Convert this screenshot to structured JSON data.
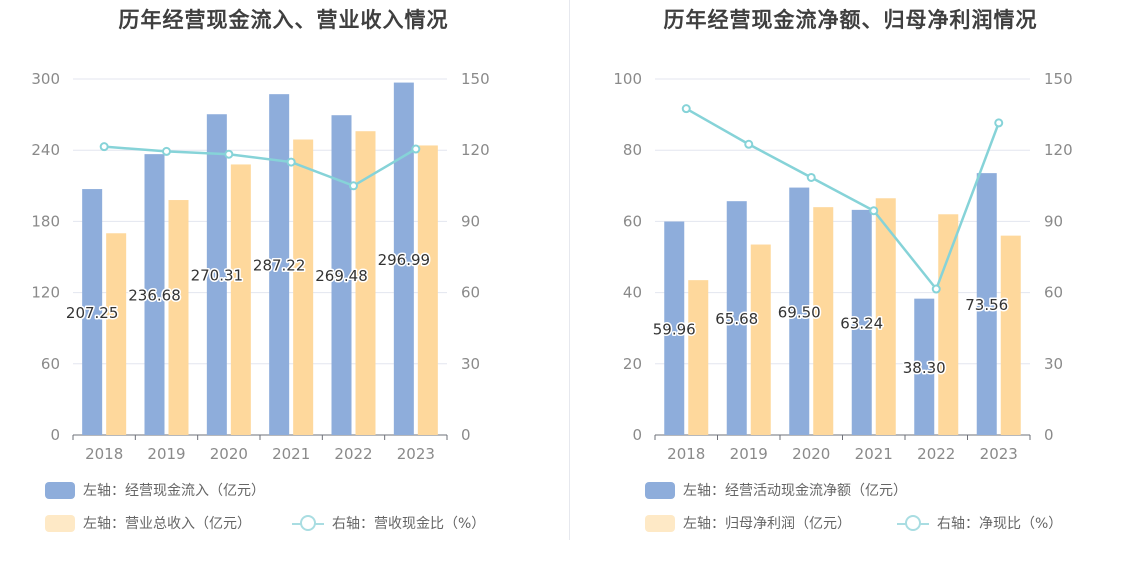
{
  "charts": {
    "left": {
      "title": "历年经营现金流入、营业收入情况",
      "legend": {
        "bar1": "左轴：经营现金流入（亿元）",
        "bar2": "左轴：营业总收入（亿元）",
        "line": "右轴：营收现金比（%）"
      }
    },
    "right": {
      "title": "历年经营现金流净额、归母净利润情况",
      "legend": {
        "bar1": "左轴：经营活动现金流净额（亿元）",
        "bar2": "左轴：归母净利润（亿元）",
        "line": "右轴：净现比（%）"
      }
    }
  },
  "colors": {
    "bar1": "#8eaddb",
    "bar2": "#fed89c",
    "line": "#86d3d8"
  },
  "chart_data": [
    {
      "type": "bar",
      "title": "历年经营现金流入、营业收入情况",
      "categories": [
        "2018",
        "2019",
        "2020",
        "2021",
        "2022",
        "2023"
      ],
      "left_axis": {
        "ylim": [
          0,
          300
        ],
        "ticks": [
          "0",
          "60",
          "120",
          "180",
          "240",
          "300"
        ]
      },
      "right_axis": {
        "ylim": [
          0,
          150
        ],
        "ticks": [
          "0",
          "30",
          "60",
          "90",
          "120",
          "150"
        ]
      },
      "series": [
        {
          "name": "左轴：经营现金流入（亿元）",
          "axis": "left",
          "kind": "bar",
          "values": [
            207.25,
            236.68,
            270.31,
            287.22,
            269.48,
            296.99
          ],
          "labels": [
            "207.25",
            "236.68",
            "270.31",
            "287.22",
            "269.48",
            "296.99"
          ]
        },
        {
          "name": "左轴：营业总收入（亿元）",
          "axis": "left",
          "kind": "bar",
          "values": [
            170,
            198,
            228,
            249,
            256,
            244
          ]
        },
        {
          "name": "右轴：营收现金比（%）",
          "axis": "right",
          "kind": "line",
          "values": [
            121.5,
            119.5,
            118.3,
            115,
            105,
            120.5
          ]
        }
      ]
    },
    {
      "type": "bar",
      "title": "历年经营现金流净额、归母净利润情况",
      "categories": [
        "2018",
        "2019",
        "2020",
        "2021",
        "2022",
        "2023"
      ],
      "left_axis": {
        "ylim": [
          0,
          100
        ],
        "ticks": [
          "0",
          "20",
          "40",
          "60",
          "80",
          "100"
        ]
      },
      "right_axis": {
        "ylim": [
          0,
          150
        ],
        "ticks": [
          "0",
          "30",
          "60",
          "90",
          "120",
          "150"
        ]
      },
      "series": [
        {
          "name": "左轴：经营活动现金流净额（亿元）",
          "axis": "left",
          "kind": "bar",
          "values": [
            59.96,
            65.68,
            69.5,
            63.24,
            38.3,
            73.56
          ],
          "labels": [
            "59.96",
            "65.68",
            "69.50",
            "63.24",
            "38.30",
            "73.56"
          ]
        },
        {
          "name": "左轴：归母净利润（亿元）",
          "axis": "left",
          "kind": "bar",
          "values": [
            43.5,
            53.5,
            64,
            66.5,
            62,
            56
          ]
        },
        {
          "name": "右轴：净现比（%）",
          "axis": "right",
          "kind": "line",
          "values": [
            137.5,
            122.5,
            108.5,
            94.5,
            61.5,
            131.5
          ]
        }
      ]
    }
  ]
}
